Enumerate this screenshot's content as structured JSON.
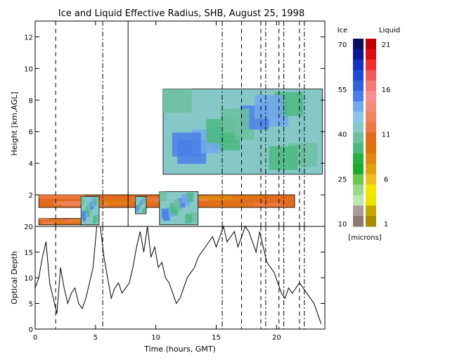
{
  "chart_data": [
    {
      "type": "heatmap",
      "title": "Ice and Liquid Effective Radius, SHB, August 25, 1998",
      "ylabel": "Height [km,AGL]",
      "xlim": [
        0,
        24
      ],
      "ylim": [
        0,
        13
      ],
      "yticks": [
        2,
        4,
        6,
        8,
        10,
        12
      ],
      "xticks": [
        0,
        5,
        10,
        15,
        20
      ],
      "colorbar": {
        "ice_label": "Ice",
        "liquid_label": "Liquid",
        "units": "[microns]",
        "ice_ticks": [
          "70",
          "55",
          "40",
          "25",
          "10"
        ],
        "liquid_ticks": [
          "21",
          "16",
          "11",
          "6",
          "1"
        ],
        "ice_colors": [
          "#0c0c5c",
          "#0e1890",
          "#1630c0",
          "#1f48d8",
          "#3060e0",
          "#4a7fe6",
          "#72a8ec",
          "#8ec4ec",
          "#86c8c8",
          "#6cc0a0",
          "#4cb880",
          "#26b040",
          "#1caa2a",
          "#6ac84e",
          "#9ad88a",
          "#bce6b2",
          "#a89c94",
          "#8a7a72"
        ],
        "liquid_colors": [
          "#c00000",
          "#dc1010",
          "#f03030",
          "#f05a5a",
          "#f47878",
          "#f49090",
          "#f48e7a",
          "#f0845c",
          "#ec7a44",
          "#e26c1e",
          "#de7410",
          "#e08a10",
          "#e0a010",
          "#f0c020",
          "#f4e600",
          "#ece400",
          "#c6a600",
          "#a88c00"
        ]
      },
      "regions": [
        {
          "name": "upper-ice-cloud",
          "kind": "ice",
          "x": [
            10.6,
            23.8
          ],
          "y": [
            3.3,
            8.7
          ]
        },
        {
          "name": "low-liquid-layer",
          "kind": "liquid",
          "x": [
            0.3,
            21.5
          ],
          "y": [
            1.2,
            2.0
          ]
        },
        {
          "name": "lowest-liquid-layer",
          "kind": "liquid",
          "x": [
            0.3,
            5.2
          ],
          "y": [
            0.1,
            0.5
          ]
        },
        {
          "name": "low-ice-column-1",
          "kind": "ice",
          "x": [
            3.8,
            5.3
          ],
          "y": [
            0.1,
            1.9
          ]
        },
        {
          "name": "low-ice-column-2",
          "kind": "ice",
          "x": [
            8.3,
            9.2
          ],
          "y": [
            0.8,
            1.9
          ]
        },
        {
          "name": "low-ice-column-3",
          "kind": "ice",
          "x": [
            10.3,
            13.5
          ],
          "y": [
            0.1,
            2.2
          ]
        }
      ],
      "event_lines": {
        "dashed": [
          1.7,
          17.1,
          18.7,
          20.2,
          21.9
        ],
        "dashdot": [
          5.6,
          15.5,
          19.1,
          20.6,
          22.3
        ],
        "solid": [
          7.7
        ]
      }
    },
    {
      "type": "line",
      "ylabel": "Optical Depth",
      "xlabel": "Time (hours, GMT)",
      "xlim": [
        0,
        24
      ],
      "ylim": [
        0,
        20
      ],
      "yticks": [
        0,
        5,
        10,
        15,
        20
      ],
      "xticks": [
        0,
        5,
        10,
        15,
        20
      ],
      "x": [
        0,
        0.3,
        0.6,
        0.9,
        1.2,
        1.5,
        1.8,
        2.1,
        2.4,
        2.7,
        3.0,
        3.3,
        3.6,
        3.9,
        4.2,
        4.5,
        4.8,
        5.1,
        5.4,
        5.7,
        6.0,
        6.3,
        6.6,
        6.9,
        7.2,
        7.5,
        7.8,
        8.1,
        8.4,
        8.7,
        9.0,
        9.3,
        9.6,
        9.9,
        10.2,
        10.5,
        10.8,
        11.1,
        11.4,
        11.7,
        12.0,
        12.3,
        12.6,
        12.9,
        13.2,
        13.5,
        13.8,
        14.1,
        14.4,
        14.7,
        15.0,
        15.3,
        15.6,
        15.9,
        16.2,
        16.5,
        16.8,
        17.1,
        17.4,
        17.7,
        18.0,
        18.3,
        18.6,
        18.9,
        19.2,
        19.5,
        19.8,
        20.1,
        20.4,
        20.7,
        21.0,
        21.3,
        21.6,
        21.9,
        22.2,
        22.5,
        22.8,
        23.1,
        23.4,
        23.7
      ],
      "y": [
        8,
        10,
        14,
        17,
        9,
        6,
        3,
        12,
        8,
        5,
        7,
        8,
        5,
        4,
        6,
        9,
        12,
        20,
        20,
        14,
        10,
        6,
        8,
        9,
        7,
        8,
        9,
        12,
        16,
        19,
        15,
        20,
        14,
        16,
        12,
        13,
        10,
        9,
        7,
        5,
        6,
        8,
        10,
        11,
        12,
        14,
        15,
        16,
        17,
        18,
        16,
        18,
        20,
        17,
        18,
        19,
        16,
        18,
        20,
        19,
        17,
        15,
        19,
        16,
        13,
        12,
        11,
        9,
        7,
        6,
        8,
        7,
        8,
        9,
        8,
        7,
        6,
        5,
        3,
        1
      ]
    }
  ]
}
